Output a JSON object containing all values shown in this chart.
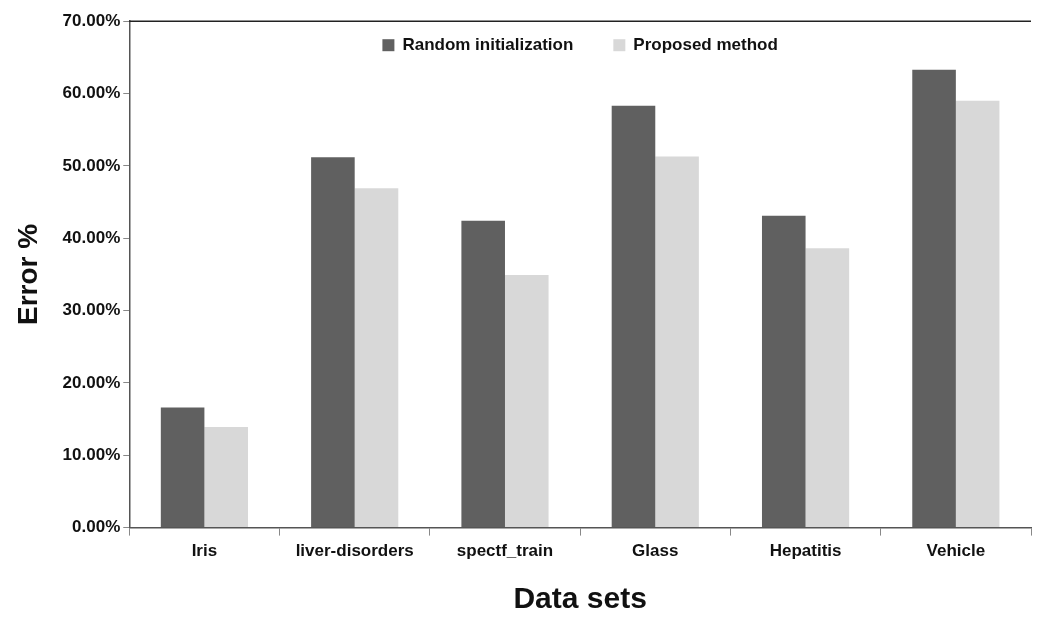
{
  "chart_data": {
    "type": "bar",
    "xlabel": "Data sets",
    "ylabel": "Error %",
    "categories": [
      "Iris",
      "liver-disorders",
      "spectf_train",
      "Glass",
      "Hepatitis",
      "Vehicle"
    ],
    "series": [
      {
        "name": "Random initialization",
        "color": "#606060",
        "values": [
          16.6,
          51.2,
          42.4,
          58.3,
          43.1,
          63.3
        ]
      },
      {
        "name": "Proposed method",
        "color": "#d8d8d8",
        "values": [
          13.9,
          46.9,
          34.9,
          51.3,
          38.6,
          59.0
        ]
      }
    ],
    "ylim": [
      0,
      70
    ],
    "yticks": [
      {
        "value": 0,
        "label": "0.00%"
      },
      {
        "value": 10,
        "label": "10.00%"
      },
      {
        "value": 20,
        "label": "20.00%"
      },
      {
        "value": 30,
        "label": "30.00%"
      },
      {
        "value": 40,
        "label": "40.00%"
      },
      {
        "value": 50,
        "label": "50.00%"
      },
      {
        "value": 60,
        "label": "60.00%"
      },
      {
        "value": 70,
        "label": "70.00%"
      }
    ],
    "grid": false,
    "legend": "top"
  }
}
